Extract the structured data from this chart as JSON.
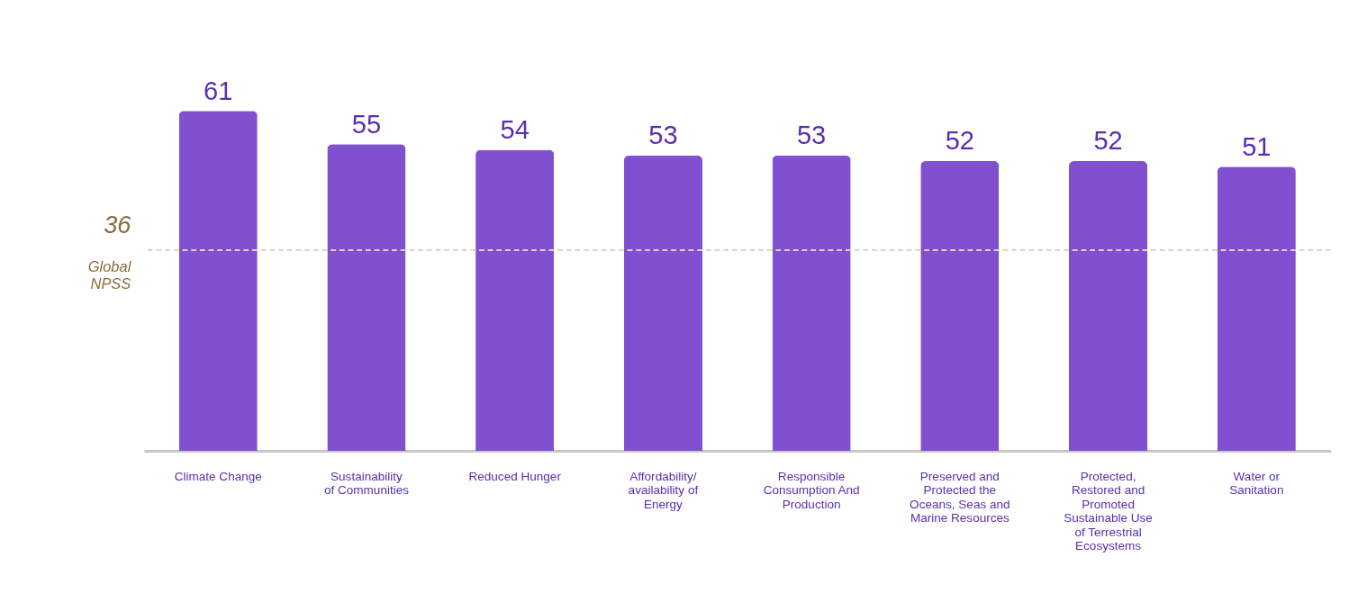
{
  "chart_data": {
    "type": "bar",
    "categories": [
      "Climate Change",
      "Sustainability of Communities",
      "Reduced Hunger",
      "Affordability/ availability of Energy",
      "Responsible Consumption And Production",
      "Preserved and Protected the Oceans, Seas and Marine Resources",
      "Protected, Restored and Promoted Sustainable Use of Terrestrial Ecosystems",
      "Water or Sanitation"
    ],
    "values": [
      61,
      55,
      54,
      53,
      53,
      52,
      52,
      51
    ],
    "color": "#8050d0",
    "tick_labels": "x",
    "grid": false,
    "data_labels": true,
    "annotations": [
      "36"
    ],
    "ref_lines": [
      {
        "axis": "y",
        "value": 36,
        "label": "Global NPSS",
        "color": "#e3d2bf",
        "line_style": "dashed"
      }
    ]
  }
}
